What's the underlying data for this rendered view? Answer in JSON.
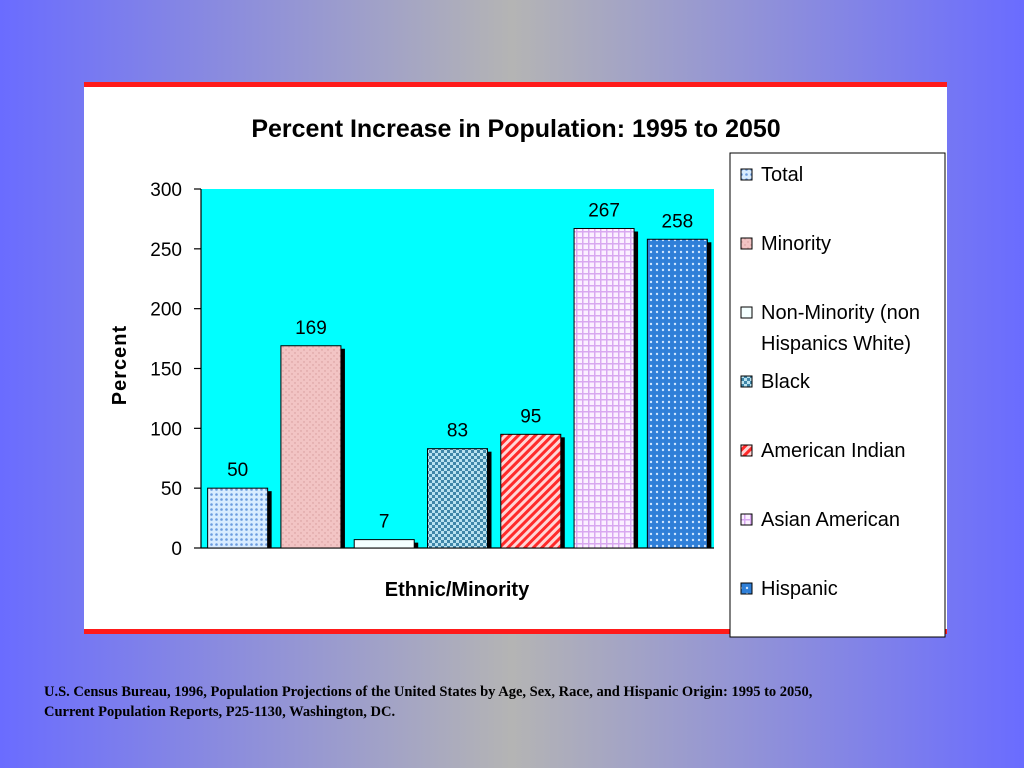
{
  "chart_data": {
    "type": "bar",
    "title": "Percent Increase in Population:  1995 to 2050",
    "xlabel": "Ethnic/Minority",
    "ylabel": "Percent",
    "ylim": [
      0,
      300
    ],
    "yticks": [
      "0",
      "50",
      "100",
      "150",
      "200",
      "250",
      "300"
    ],
    "plot_background": "#00ffff",
    "legend_position": "right",
    "series": [
      {
        "name": "Total",
        "value": 50,
        "label": "50",
        "color": "#9ec6ff",
        "pattern": "dots"
      },
      {
        "name": "Minority",
        "value": 169,
        "label": "169",
        "color": "#f2c4c4",
        "pattern": "speckle"
      },
      {
        "name": "Non-Minority (non Hispanics White)",
        "value": 7,
        "label": "7",
        "color": "#f4ffff",
        "pattern": "none"
      },
      {
        "name": "Black",
        "value": 83,
        "label": "83",
        "color": "#5aa7c8",
        "pattern": "checker"
      },
      {
        "name": "American Indian",
        "value": 95,
        "label": "95",
        "color": "#ff4040",
        "pattern": "diagonal"
      },
      {
        "name": "Asian American",
        "value": 267,
        "label": "267",
        "color": "#f0d4ff",
        "pattern": "grid"
      },
      {
        "name": "Hispanic",
        "value": 258,
        "label": "258",
        "color": "#2f7fd8",
        "pattern": "dots-white"
      }
    ]
  },
  "source": {
    "line1": "U.S. Census Bureau, 1996, Population Projections of the United States by Age, Sex, Race, and Hispanic Origin: 1995 to 2050,",
    "line2": "Current Population Reports, P25-1130, Washington, DC."
  }
}
